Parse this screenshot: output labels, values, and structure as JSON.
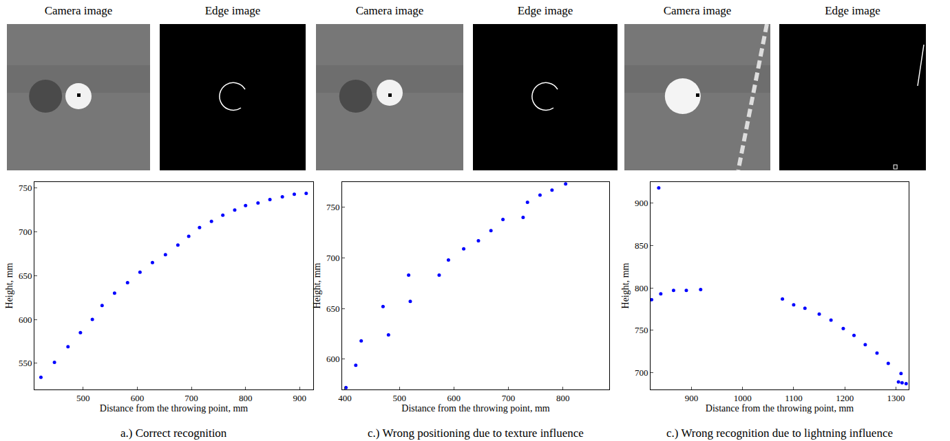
{
  "image_headers": [
    [
      "Camera image",
      "Edge image"
    ],
    [
      "Camera image",
      "Edge image"
    ],
    [
      "Camera image",
      "Edge image"
    ]
  ],
  "chart_data": [
    {
      "type": "scatter",
      "title": "a.) Correct recognition",
      "x_label": "Distance from the throwing point, mm",
      "y_label": "Height, mm",
      "x": [
        422,
        447,
        472,
        495,
        517,
        535,
        558,
        582,
        605,
        628,
        652,
        675,
        695,
        715,
        737,
        758,
        780,
        800,
        823,
        845,
        868,
        890,
        912
      ],
      "values": [
        534,
        551,
        569,
        585,
        600,
        616,
        630,
        642,
        654,
        665,
        674,
        685,
        695,
        705,
        712,
        719,
        725,
        730,
        733,
        737,
        740,
        743,
        744
      ],
      "xlim": [
        410,
        925
      ],
      "xticks": [
        500,
        600,
        700,
        800,
        900
      ],
      "ylim": [
        520,
        757
      ],
      "yticks": [
        550,
        600,
        650,
        700,
        750
      ],
      "color": "#0000ff",
      "marker": "circle",
      "grid": false
    },
    {
      "type": "scatter",
      "title": "c.) Wrong positioning due to texture influence",
      "x_label": "Distance from the throwing point, mm",
      "y_label": "Height, mm",
      "x": [
        402,
        420,
        430,
        470,
        480,
        517,
        520,
        573,
        590,
        618,
        645,
        668,
        690,
        727,
        735,
        758,
        780,
        805
      ],
      "values": [
        572,
        594,
        618,
        652,
        624,
        683,
        657,
        683,
        698,
        709,
        717,
        727,
        738,
        740,
        755,
        762,
        767,
        773
      ],
      "xlim": [
        395,
        885
      ],
      "xticks": [
        400,
        500,
        600,
        700,
        800
      ],
      "ylim": [
        570,
        775
      ],
      "yticks": [
        600,
        650,
        700,
        750
      ],
      "color": "#0000ff",
      "marker": "circle",
      "grid": false
    },
    {
      "type": "scatter",
      "title": "c.) Wrong recognition due to lightning influence",
      "x_label": "Distance from the throwing point, mm",
      "y_label": "Height, mm",
      "x": [
        822,
        836,
        840,
        865,
        890,
        918,
        1078,
        1100,
        1122,
        1150,
        1173,
        1197,
        1218,
        1240,
        1263,
        1285,
        1305,
        1310,
        1312,
        1320
      ],
      "values": [
        786,
        918,
        793,
        797,
        797,
        798,
        787,
        780,
        776,
        769,
        762,
        752,
        744,
        733,
        723,
        711,
        689,
        699,
        688,
        687
      ],
      "xlim": [
        820,
        1325
      ],
      "xticks": [
        900,
        1000,
        1100,
        1200,
        1300
      ],
      "ylim": [
        680,
        925
      ],
      "yticks": [
        700,
        750,
        800,
        850,
        900
      ],
      "color": "#0000ff",
      "marker": "circle",
      "grid": false
    }
  ]
}
